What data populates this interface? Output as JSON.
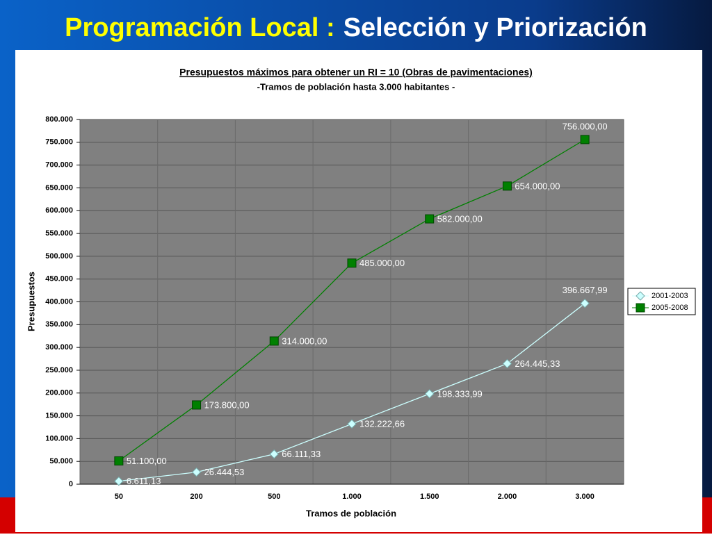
{
  "slide": {
    "title_highlight": "Programación Local :",
    "title_rest": "Selección y Priorización"
  },
  "chart_data": {
    "type": "line",
    "title": "Presupuestos máximos para obtener un RI = 10 (Obras de pavimentaciones)",
    "subtitle": "-Tramos de población hasta 3.000 habitantes -",
    "x_label": "Tramos de población",
    "y_label": "Presupuestos",
    "categories": [
      "50",
      "200",
      "500",
      "1.000",
      "1.500",
      "2.000",
      "3.000"
    ],
    "series": [
      {
        "name": "2001-2003",
        "color": "#ccffff",
        "marker": "diamond",
        "values": [
          6611.13,
          26444.53,
          66111.33,
          132222.66,
          198333.99,
          264445.33,
          396667.99
        ],
        "value_labels": [
          "6.611,13",
          "26.444,53",
          "66.111,33",
          "132.222,66",
          "198.333,99",
          "264.445,33",
          "396.667,99"
        ]
      },
      {
        "name": "2005-2008",
        "color": "#008000",
        "marker": "square",
        "values": [
          51100,
          173800,
          314000,
          485000,
          582000,
          654000,
          756000
        ],
        "value_labels": [
          "51.100,00",
          "173.800,00",
          "314.000,00",
          "485.000,00",
          "582.000,00",
          "654.000,00",
          "756.000,00"
        ]
      }
    ],
    "ylim": [
      0,
      800000
    ],
    "yticks": [
      0,
      {
        "value": 50000,
        "label": "50.000"
      },
      {
        "value": 100000,
        "label": "100.000"
      },
      {
        "value": 150000,
        "label": "150.000"
      },
      {
        "value": 200000,
        "label": "200.000"
      },
      {
        "value": 250000,
        "label": "250.000"
      },
      {
        "value": 300000,
        "label": "300.000"
      },
      {
        "value": 350000,
        "label": "350.000"
      },
      {
        "value": 400000,
        "label": "400.000"
      },
      {
        "value": 450000,
        "label": "450.000"
      },
      {
        "value": 500000,
        "label": "500.000"
      },
      {
        "value": 550000,
        "label": "550.000"
      },
      {
        "value": 600000,
        "label": "600.000"
      },
      {
        "value": 650000,
        "label": "650.000"
      },
      {
        "value": 700000,
        "label": "700.000"
      },
      {
        "value": 750000,
        "label": "750.000"
      },
      {
        "value": 800000,
        "label": "800.000"
      }
    ],
    "grid": true,
    "legend": "right"
  }
}
